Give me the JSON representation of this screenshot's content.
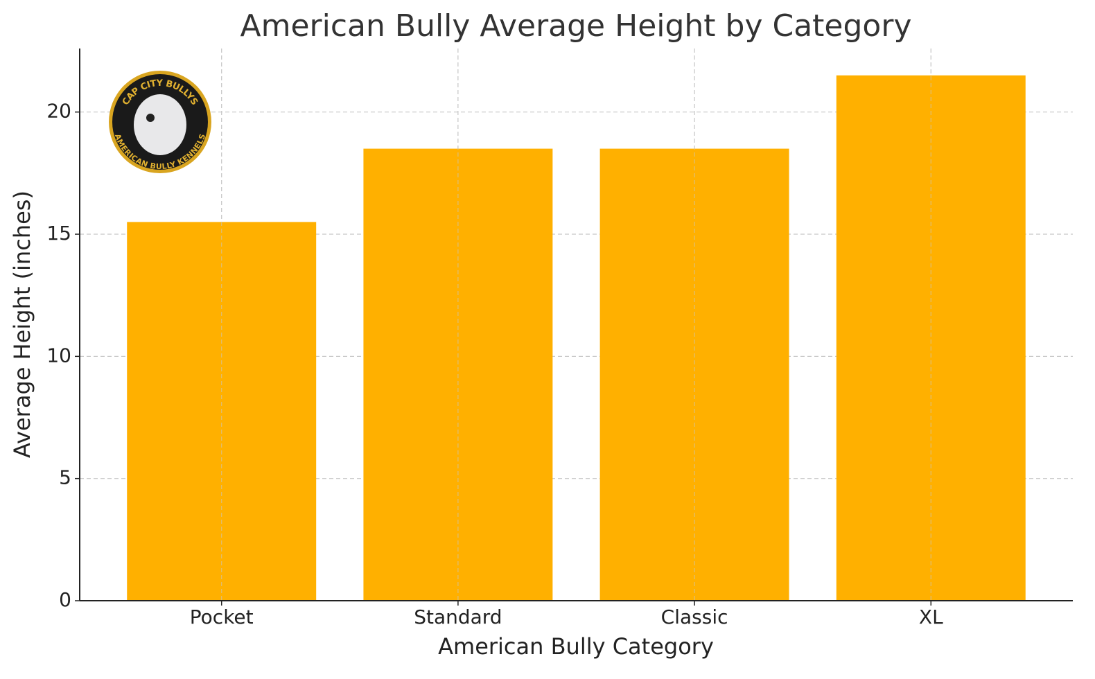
{
  "chart_data": {
    "type": "bar",
    "title": "American Bully Average Height by Category",
    "x_label": "American Bully Category",
    "y_label": "Average Height (inches)",
    "categories": [
      "Pocket",
      "Standard",
      "Classic",
      "XL"
    ],
    "values": [
      15.5,
      18.5,
      18.5,
      21.5
    ],
    "color": "#ffb000",
    "ylim": [
      0,
      22.6
    ],
    "yticks": [
      0,
      5,
      10,
      15,
      20
    ],
    "grid": true,
    "logo": {
      "top_text": "CAP CITY BULLYS",
      "bottom_text": "AMERICAN BULLY KENNELS"
    }
  }
}
